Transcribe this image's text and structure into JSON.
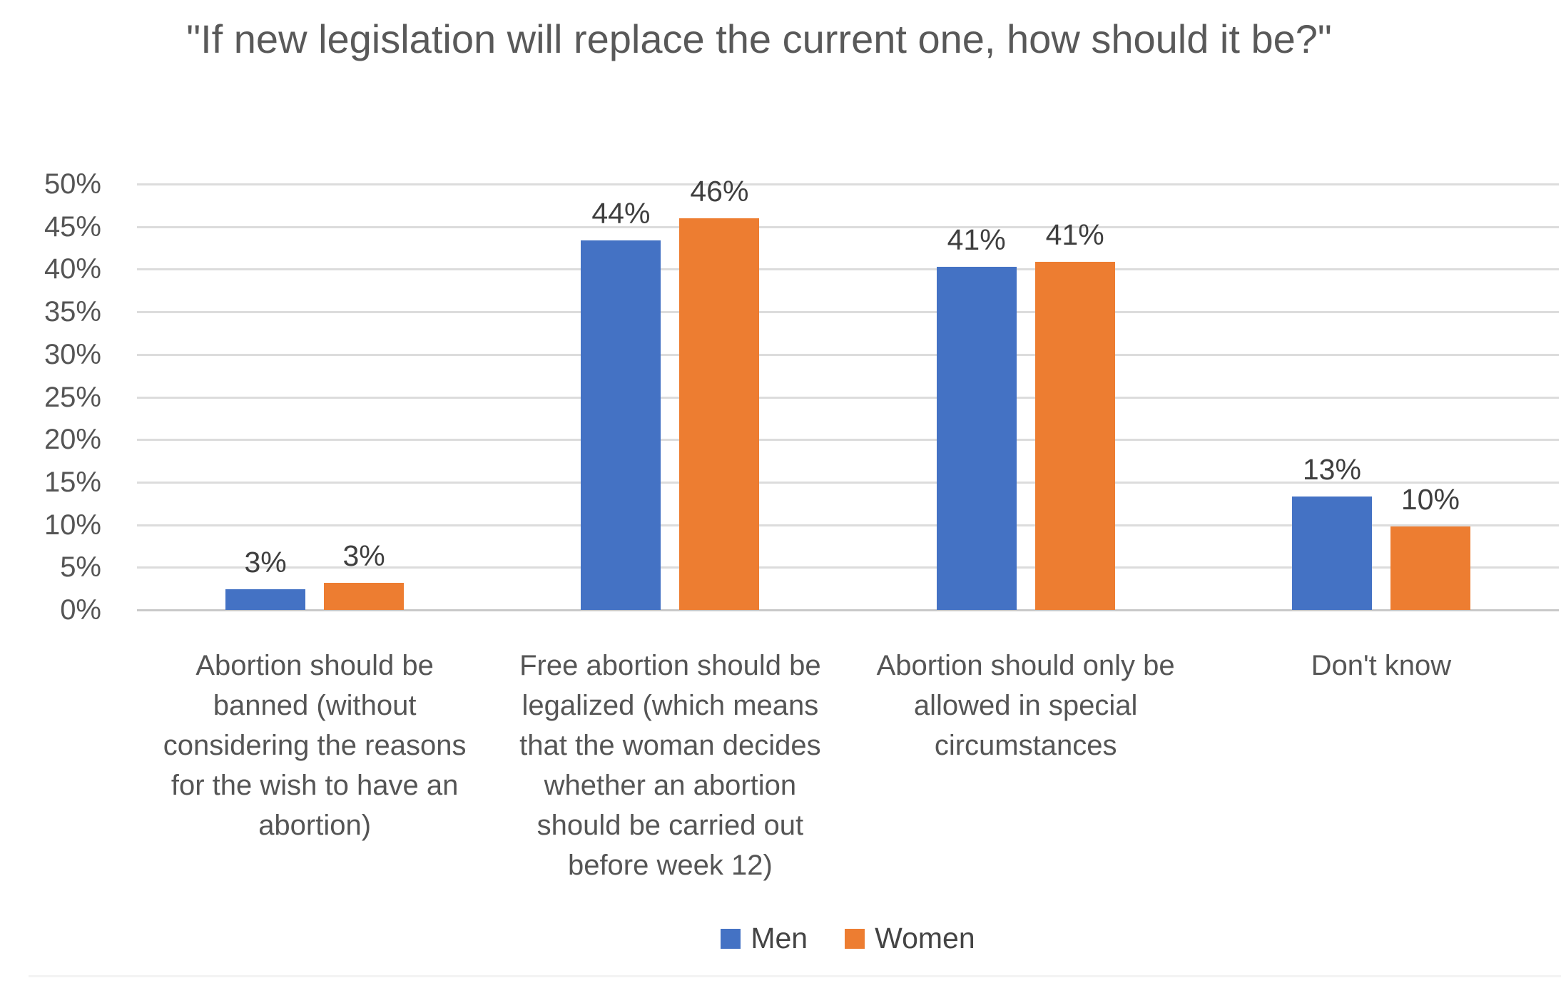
{
  "chart_data": {
    "type": "bar",
    "title": "\"If new legislation will replace the current one, how should it be?\"",
    "categories": [
      "Abortion should be banned (without considering the reasons for the wish to have an abortion)",
      "Free abortion should be legalized (which means that the woman decides whether an abortion should be carried out before week 12)",
      "Abortion should only be allowed in special circumstances",
      "Don't know"
    ],
    "series": [
      {
        "name": "Men",
        "color": "#4472C4",
        "values": [
          3,
          44,
          41,
          13
        ],
        "data_labels": [
          "3%",
          "44%",
          "41%",
          "13%"
        ],
        "measured_values": [
          2.4,
          43.4,
          40.3,
          13.3
        ]
      },
      {
        "name": "Women",
        "color": "#ED7D31",
        "values": [
          3,
          46,
          41,
          10
        ],
        "data_labels": [
          "3%",
          "46%",
          "41%",
          "10%"
        ],
        "measured_values": [
          3.2,
          46.0,
          40.9,
          9.8
        ]
      }
    ],
    "ylabel": "",
    "xlabel": "",
    "ylim": [
      0,
      50
    ],
    "ytick_step": 5,
    "ytick_labels": [
      "0%",
      "5%",
      "10%",
      "15%",
      "20%",
      "25%",
      "30%",
      "35%",
      "40%",
      "45%",
      "50%"
    ],
    "grid": true,
    "legend_position": "bottom",
    "colors": {
      "title_text": "#595959",
      "axis_text": "#555555",
      "data_label_text": "#3f3f3f",
      "gridline": "#DCDCDC",
      "baseline": "#C9C9C9",
      "background": "#ffffff"
    }
  }
}
